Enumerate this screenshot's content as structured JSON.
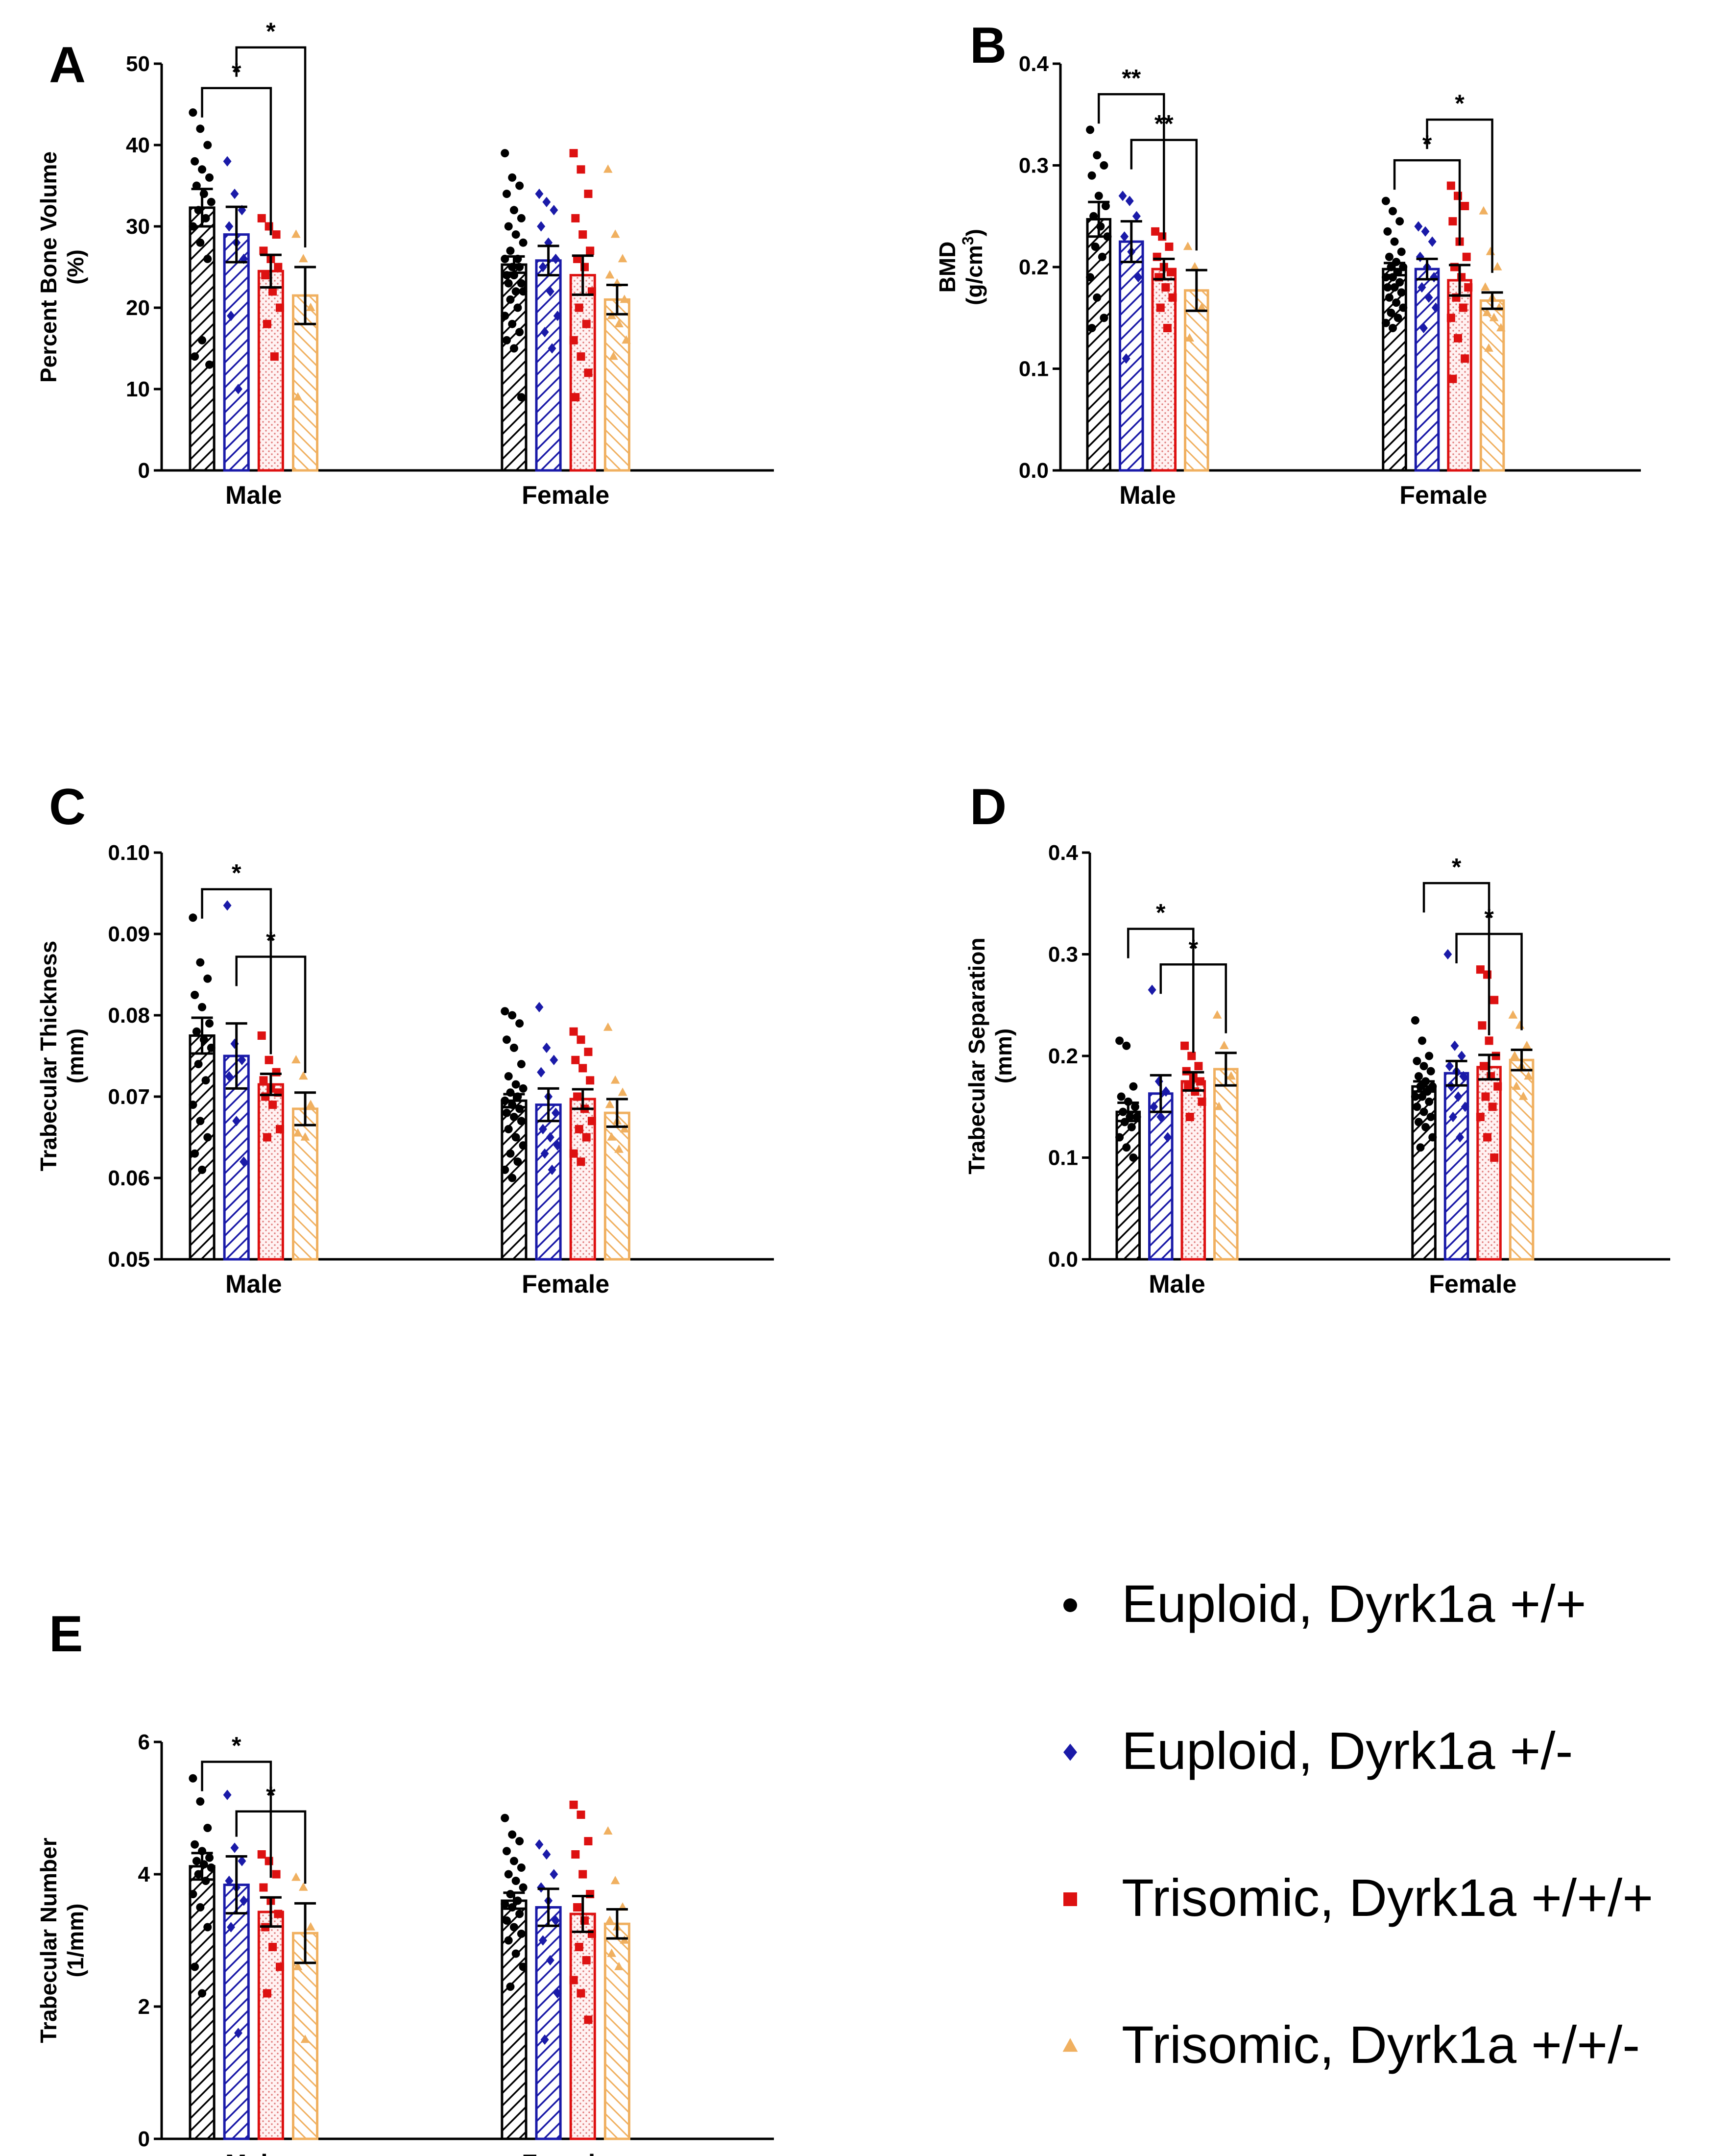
{
  "figure": {
    "legend": [
      {
        "marker": "circle",
        "color": "#000000",
        "label": "Euploid, Dyrk1a +/+"
      },
      {
        "marker": "diamond",
        "color": "#1a1aa8",
        "label": "Euploid, Dyrk1a +/-"
      },
      {
        "marker": "square",
        "color": "#dd1111",
        "label": "Trisomic, Dyrk1a +/+/+"
      },
      {
        "marker": "triangle",
        "color": "#f0b060",
        "label": "Trisomic, Dyrk1a +/+/-"
      }
    ],
    "colors": {
      "euploid_wt": "#000000",
      "euploid_het": "#1a1aa8",
      "trisomic_wt": "#dd1111",
      "trisomic_het": "#f0b060"
    }
  },
  "chart_data": [
    {
      "panel": "A",
      "type": "bar",
      "ylabel_lines": [
        "Percent Bone Volume",
        "(%)"
      ],
      "ylim": [
        0,
        50
      ],
      "yticks": [
        "0",
        "10",
        "20",
        "30",
        "40",
        "50"
      ],
      "groups": [
        "Male",
        "Female"
      ],
      "series": [
        {
          "name": "Euploid, Dyrk1a +/+",
          "means": [
            32.3,
            25.3
          ],
          "sem": [
            2.3,
            1.0
          ],
          "points": [
            [
              44,
              42,
              40,
              38,
              37,
              36,
              35,
              34,
              33,
              32,
              31,
              30,
              28,
              26,
              14,
              16,
              13
            ],
            [
              39,
              36,
              35,
              34,
              32,
              31,
              30,
              29,
              28,
              27,
              26,
              26,
              25,
              25,
              24,
              24,
              23,
              23,
              22,
              22,
              21,
              20,
              19,
              18,
              17,
              16,
              15,
              9
            ]
          ]
        },
        {
          "name": "Euploid, Dyrk1a +/-",
          "means": [
            29.0,
            25.8
          ],
          "sem": [
            3.4,
            1.8
          ],
          "points": [
            [
              38,
              34,
              32,
              30,
              28,
              26,
              19,
              10
            ],
            [
              34,
              33,
              32,
              30,
              28,
              26,
              25,
              22,
              19,
              17,
              15
            ]
          ]
        },
        {
          "name": "Trisomic, Dyrk1a +/+/+",
          "means": [
            24.5,
            24.0
          ],
          "sem": [
            2.0,
            2.4
          ],
          "points": [
            [
              31,
              30,
              29,
              27,
              26,
              25,
              24,
              22,
              20,
              18,
              14
            ],
            [
              39,
              37,
              34,
              31,
              29,
              27,
              26,
              25,
              22,
              20,
              18,
              16,
              14,
              12,
              9
            ]
          ]
        },
        {
          "name": "Trisomic, Dyrk1a +/+/-",
          "means": [
            21.5,
            21.0
          ],
          "sem": [
            3.5,
            1.8
          ],
          "points": [
            [
              29,
              26,
              20,
              9
            ],
            [
              37,
              29,
              26,
              24,
              23,
              21,
              19,
              18,
              16,
              14
            ]
          ]
        }
      ],
      "significance": [
        {
          "group": 0,
          "from": 0,
          "to": 2,
          "label": "*",
          "y": 47
        },
        {
          "group": 0,
          "from": 1,
          "to": 3,
          "label": "*",
          "y": 52
        }
      ]
    },
    {
      "panel": "B",
      "type": "bar",
      "ylabel_lines": [
        "BMD",
        "(g/cm3)"
      ],
      "ylim": [
        0,
        0.4
      ],
      "yticks": [
        "0.0",
        "0.1",
        "0.2",
        "0.3",
        "0.4"
      ],
      "groups": [
        "Male",
        "Female"
      ],
      "series": [
        {
          "name": "Euploid, Dyrk1a +/+",
          "means": [
            0.247,
            0.198
          ],
          "sem": [
            0.017,
            0.006
          ],
          "points": [
            [
              0.335,
              0.31,
              0.3,
              0.29,
              0.27,
              0.26,
              0.25,
              0.24,
              0.23,
              0.22,
              0.21,
              0.19,
              0.17,
              0.15,
              0.14
            ],
            [
              0.265,
              0.255,
              0.245,
              0.235,
              0.225,
              0.215,
              0.21,
              0.205,
              0.2,
              0.2,
              0.195,
              0.19,
              0.19,
              0.185,
              0.18,
              0.18,
              0.175,
              0.17,
              0.165,
              0.16,
              0.155,
              0.15,
              0.145,
              0.14
            ]
          ]
        },
        {
          "name": "Euploid, Dyrk1a +/-",
          "means": [
            0.225,
            0.198
          ],
          "sem": [
            0.02,
            0.01
          ],
          "points": [
            [
              0.27,
              0.265,
              0.25,
              0.23,
              0.215,
              0.19,
              0.11
            ],
            [
              0.24,
              0.235,
              0.225,
              0.21,
              0.2,
              0.19,
              0.18,
              0.17,
              0.16,
              0.14
            ]
          ]
        },
        {
          "name": "Trisomic, Dyrk1a +/+/+",
          "means": [
            0.198,
            0.187
          ],
          "sem": [
            0.01,
            0.015
          ],
          "points": [
            [
              0.235,
              0.23,
              0.22,
              0.21,
              0.2,
              0.195,
              0.19,
              0.18,
              0.17,
              0.16,
              0.14
            ],
            [
              0.28,
              0.27,
              0.26,
              0.245,
              0.225,
              0.21,
              0.2,
              0.19,
              0.18,
              0.17,
              0.16,
              0.15,
              0.13,
              0.11,
              0.09
            ]
          ]
        },
        {
          "name": "Trisomic, Dyrk1a +/+/-",
          "means": [
            0.177,
            0.167
          ],
          "sem": [
            0.02,
            0.008
          ],
          "points": [
            [
              0.22,
              0.2,
              0.16,
              0.13
            ],
            [
              0.255,
              0.215,
              0.2,
              0.18,
              0.17,
              0.16,
              0.155,
              0.15,
              0.14,
              0.12
            ]
          ]
        }
      ],
      "significance": [
        {
          "group": 0,
          "from": 0,
          "to": 2,
          "label": "**",
          "y": 0.37
        },
        {
          "group": 0,
          "from": 1,
          "to": 3,
          "label": "**",
          "y": 0.325
        },
        {
          "group": 1,
          "from": 0,
          "to": 2,
          "label": "*",
          "y": 0.305
        },
        {
          "group": 1,
          "from": 1,
          "to": 3,
          "label": "*",
          "y": 0.345
        }
      ]
    },
    {
      "panel": "C",
      "type": "bar",
      "ylabel_lines": [
        "Trabecular Thickness",
        "(mm)"
      ],
      "ylim": [
        0.05,
        0.1
      ],
      "yticks": [
        "0.05",
        "0.06",
        "0.07",
        "0.08",
        "0.09",
        "0.10"
      ],
      "groups": [
        "Male",
        "Female"
      ],
      "series": [
        {
          "name": "Euploid, Dyrk1a +/+",
          "means": [
            0.0775,
            0.0695
          ],
          "sem": [
            0.0022,
            0.0008
          ],
          "points": [
            [
              0.092,
              0.0865,
              0.0845,
              0.0825,
              0.081,
              0.079,
              0.078,
              0.077,
              0.076,
              0.074,
              0.072,
              0.069,
              0.067,
              0.065,
              0.063,
              0.061
            ],
            [
              0.0805,
              0.08,
              0.079,
              0.077,
              0.076,
              0.074,
              0.0725,
              0.0715,
              0.071,
              0.0705,
              0.07,
              0.0695,
              0.069,
              0.0685,
              0.068,
              0.0675,
              0.067,
              0.066,
              0.065,
              0.064,
              0.063,
              0.062,
              0.061,
              0.06
            ]
          ]
        },
        {
          "name": "Euploid, Dyrk1a +/-",
          "means": [
            0.075,
            0.069
          ],
          "sem": [
            0.004,
            0.002
          ],
          "points": [
            [
              0.0935,
              0.0765,
              0.0745,
              0.0725,
              0.067,
              0.062
            ],
            [
              0.081,
              0.076,
              0.0745,
              0.073,
              0.07,
              0.068,
              0.066,
              0.065,
              0.064,
              0.063,
              0.061
            ]
          ]
        },
        {
          "name": "Trisomic, Dyrk1a +/+/+",
          "means": [
            0.0715,
            0.0697
          ],
          "sem": [
            0.0013,
            0.0012
          ],
          "points": [
            [
              0.0775,
              0.0745,
              0.073,
              0.072,
              0.071,
              0.0705,
              0.07,
              0.069,
              0.066,
              0.065
            ],
            [
              0.078,
              0.077,
              0.0755,
              0.0745,
              0.0735,
              0.072,
              0.07,
              0.0685,
              0.067,
              0.066,
              0.065,
              0.063,
              0.062
            ]
          ]
        },
        {
          "name": "Trisomic, Dyrk1a +/+/-",
          "means": [
            0.0685,
            0.068
          ],
          "sem": [
            0.002,
            0.0017
          ],
          "points": [
            [
              0.0745,
              0.0725,
              0.069,
              0.0655,
              0.065
            ],
            [
              0.0785,
              0.072,
              0.0705,
              0.069,
              0.067,
              0.066,
              0.065,
              0.0635
            ]
          ]
        }
      ],
      "significance": [
        {
          "group": 0,
          "from": 0,
          "to": 2,
          "label": "*",
          "y": 0.0955
        },
        {
          "group": 0,
          "from": 1,
          "to": 3,
          "label": "*",
          "y": 0.0872
        }
      ]
    },
    {
      "panel": "D",
      "type": "bar",
      "ylabel_lines": [
        "Trabecular Separation",
        "(mm)"
      ],
      "ylim": [
        0,
        0.4
      ],
      "yticks": [
        "0.0",
        "0.1",
        "0.2",
        "0.3",
        "0.4"
      ],
      "groups": [
        "Male",
        "Female"
      ],
      "series": [
        {
          "name": "Euploid, Dyrk1a +/+",
          "means": [
            0.145,
            0.17
          ],
          "sem": [
            0.009,
            0.005
          ],
          "points": [
            [
              0.215,
              0.21,
              0.17,
              0.16,
              0.155,
              0.15,
              0.145,
              0.14,
              0.14,
              0.135,
              0.13,
              0.12,
              0.11,
              0.1
            ],
            [
              0.235,
              0.215,
              0.2,
              0.195,
              0.19,
              0.185,
              0.18,
              0.175,
              0.17,
              0.17,
              0.165,
              0.16,
              0.16,
              0.155,
              0.15,
              0.145,
              0.14,
              0.135,
              0.13,
              0.12,
              0.11
            ]
          ]
        },
        {
          "name": "Euploid, Dyrk1a +/-",
          "means": [
            0.163,
            0.183
          ],
          "sem": [
            0.018,
            0.012
          ],
          "points": [
            [
              0.265,
              0.175,
              0.165,
              0.15,
              0.14,
              0.12
            ],
            [
              0.3,
              0.21,
              0.2,
              0.19,
              0.185,
              0.18,
              0.17,
              0.16,
              0.15,
              0.14,
              0.12
            ]
          ]
        },
        {
          "name": "Trisomic, Dyrk1a +/+/+",
          "means": [
            0.175,
            0.189
          ],
          "sem": [
            0.009,
            0.012
          ],
          "points": [
            [
              0.21,
              0.2,
              0.19,
              0.185,
              0.18,
              0.175,
              0.17,
              0.165,
              0.155,
              0.14
            ],
            [
              0.285,
              0.28,
              0.255,
              0.23,
              0.215,
              0.2,
              0.19,
              0.18,
              0.17,
              0.16,
              0.15,
              0.14,
              0.12,
              0.1
            ]
          ]
        },
        {
          "name": "Trisomic, Dyrk1a +/+/-",
          "means": [
            0.187,
            0.196
          ],
          "sem": [
            0.016,
            0.01
          ],
          "points": [
            [
              0.24,
              0.21,
              0.18,
              0.15
            ],
            [
              0.24,
              0.23,
              0.21,
              0.2,
              0.19,
              0.18,
              0.17,
              0.16
            ]
          ]
        }
      ],
      "significance": [
        {
          "group": 0,
          "from": 0,
          "to": 2,
          "label": "*",
          "y": 0.325
        },
        {
          "group": 0,
          "from": 1,
          "to": 3,
          "label": "*",
          "y": 0.29
        },
        {
          "group": 1,
          "from": 0,
          "to": 2,
          "label": "*",
          "y": 0.37
        },
        {
          "group": 1,
          "from": 1,
          "to": 3,
          "label": "*",
          "y": 0.32
        }
      ]
    },
    {
      "panel": "E",
      "type": "bar",
      "ylabel_lines": [
        "Trabecular  Number",
        "(1/mm)"
      ],
      "ylim": [
        0,
        6
      ],
      "yticks": [
        "0",
        "2",
        "4",
        "6"
      ],
      "groups": [
        "Male",
        "Female"
      ],
      "series": [
        {
          "name": "Euploid, Dyrk1a +/+",
          "means": [
            4.12,
            3.6
          ],
          "sem": [
            0.2,
            0.12
          ],
          "points": [
            [
              5.45,
              5.1,
              4.7,
              4.45,
              4.35,
              4.25,
              4.2,
              4.15,
              4.1,
              4.0,
              3.9,
              3.7,
              3.5,
              3.2,
              2.6,
              2.2
            ],
            [
              4.85,
              4.6,
              4.5,
              4.35,
              4.2,
              4.1,
              4.0,
              3.9,
              3.8,
              3.7,
              3.6,
              3.55,
              3.5,
              3.4,
              3.3,
              3.2,
              3.1,
              3.0,
              2.8,
              2.6,
              2.3
            ]
          ]
        },
        {
          "name": "Euploid, Dyrk1a +/-",
          "means": [
            3.84,
            3.5
          ],
          "sem": [
            0.43,
            0.28
          ],
          "points": [
            [
              5.2,
              4.4,
              4.2,
              3.9,
              3.8,
              3.6,
              3.2,
              1.6
            ],
            [
              4.45,
              4.3,
              4.0,
              3.8,
              3.6,
              3.3,
              3.0,
              2.7,
              2.2,
              1.5
            ]
          ]
        },
        {
          "name": "Trisomic, Dyrk1a +/+/+",
          "means": [
            3.43,
            3.4
          ],
          "sem": [
            0.22,
            0.27
          ],
          "points": [
            [
              4.3,
              4.2,
              4.0,
              3.8,
              3.6,
              3.4,
              3.2,
              2.9,
              2.6,
              2.2
            ],
            [
              5.05,
              4.9,
              4.5,
              4.3,
              4.0,
              3.7,
              3.5,
              3.3,
              3.1,
              2.9,
              2.7,
              2.4,
              2.2,
              1.8
            ]
          ]
        },
        {
          "name": "Trisomic, Dyrk1a +/+/-",
          "means": [
            3.11,
            3.25
          ],
          "sem": [
            0.45,
            0.22
          ],
          "points": [
            [
              3.95,
              3.8,
              3.2,
              2.6,
              1.5
            ],
            [
              4.65,
              3.9,
              3.5,
              3.3,
              3.2,
              3.0,
              2.8,
              2.6
            ]
          ]
        }
      ],
      "significance": [
        {
          "group": 0,
          "from": 0,
          "to": 2,
          "label": "*",
          "y": 5.7
        },
        {
          "group": 0,
          "from": 1,
          "to": 3,
          "label": "*",
          "y": 4.95
        }
      ]
    }
  ]
}
